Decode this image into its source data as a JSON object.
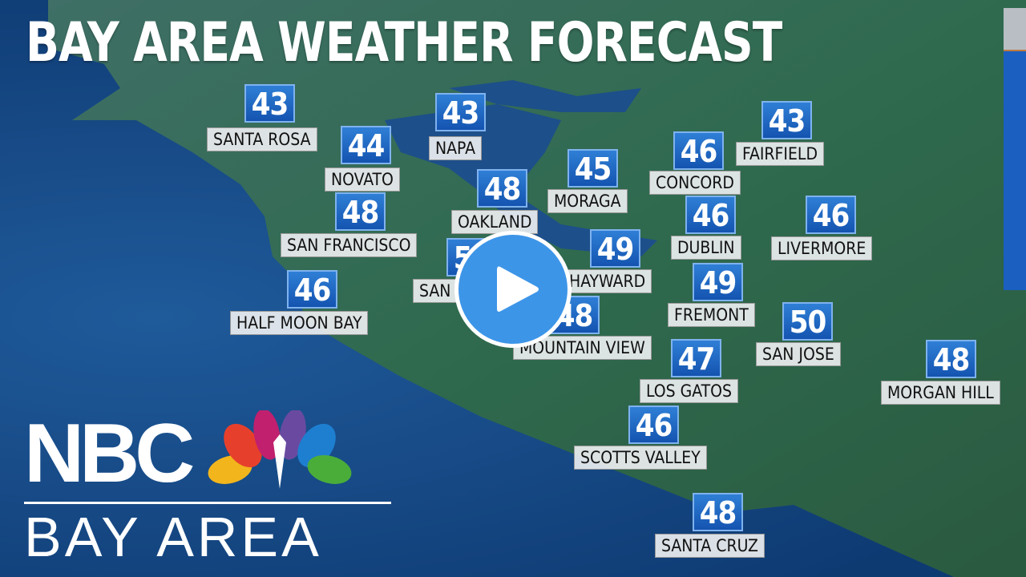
{
  "title": "BAY AREA WEATHER FORECAST",
  "cities": [
    {
      "name": "SANTA ROSA",
      "temp": "43"
    },
    {
      "name": "NOVATO",
      "temp": "44"
    },
    {
      "name": "NAPA",
      "temp": "43"
    },
    {
      "name": "MORAGA",
      "temp": "45"
    },
    {
      "name": "CONCORD",
      "temp": "46"
    },
    {
      "name": "FAIRFIELD",
      "temp": "43"
    },
    {
      "name": "OAKLAND",
      "temp": "48"
    },
    {
      "name": "SAN FRANCISCO",
      "temp": "48"
    },
    {
      "name": "SAN MATEO",
      "temp": "50"
    },
    {
      "name": "HAYWARD",
      "temp": "49"
    },
    {
      "name": "DUBLIN",
      "temp": "46"
    },
    {
      "name": "LIVERMORE",
      "temp": "46"
    },
    {
      "name": "HALF MOON BAY",
      "temp": "46"
    },
    {
      "name": "FREMONT",
      "temp": "49"
    },
    {
      "name": "MOUNTAIN VIEW",
      "temp": "48"
    },
    {
      "name": "SAN JOSE",
      "temp": "50"
    },
    {
      "name": "MORGAN HILL",
      "temp": "48"
    },
    {
      "name": "LOS GATOS",
      "temp": "47"
    },
    {
      "name": "SCOTTS VALLEY",
      "temp": "46"
    },
    {
      "name": "SANTA CRUZ",
      "temp": "48"
    }
  ],
  "logo": {
    "brand": "NBC",
    "region": "BAY AREA"
  },
  "play_icon": "play-icon",
  "colors": {
    "ocean": "#174a86",
    "badge": "#1f66c4",
    "play": "#3d95e8"
  }
}
